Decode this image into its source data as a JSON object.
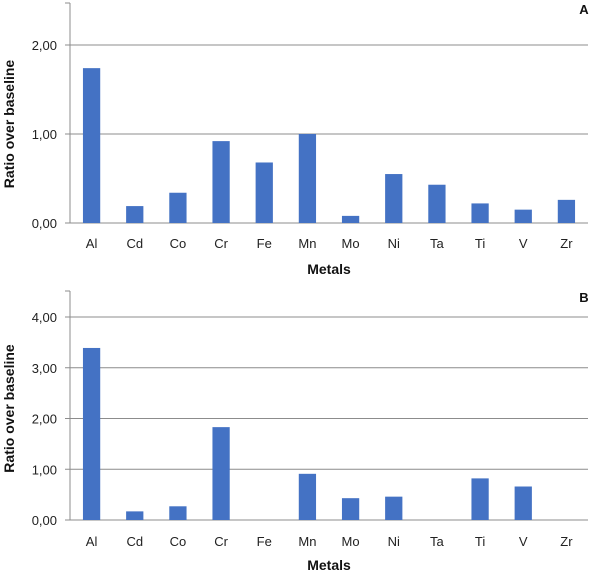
{
  "colors": {
    "bar": "#4472c4",
    "grid": "#8c8c8c",
    "axis": "#8c8c8c",
    "text": "#222222"
  },
  "chart_data": [
    {
      "type": "bar",
      "panel_label": "A",
      "xlabel": "Metals",
      "ylabel": "Ratio over baseline",
      "categories": [
        "Al",
        "Cd",
        "Co",
        "Cr",
        "Fe",
        "Mn",
        "Mo",
        "Ni",
        "Ta",
        "Ti",
        "V",
        "Zr"
      ],
      "values": [
        1.74,
        0.19,
        0.34,
        0.92,
        0.68,
        1.0,
        0.08,
        0.55,
        0.43,
        0.22,
        0.15,
        0.26
      ],
      "ylim": [
        0,
        2.0
      ],
      "yticks": [
        0,
        1,
        2
      ],
      "ytick_labels": [
        "0,00",
        "1,00",
        "2,00"
      ],
      "grid": true,
      "legend": "none"
    },
    {
      "type": "bar",
      "panel_label": "B",
      "xlabel": "Metals",
      "ylabel": "Ratio over baseline",
      "categories": [
        "Al",
        "Cd",
        "Co",
        "Cr",
        "Fe",
        "Mn",
        "Mo",
        "Ni",
        "Ta",
        "Ti",
        "V",
        "Zr"
      ],
      "values": [
        3.39,
        0.17,
        0.27,
        1.83,
        0,
        0.91,
        0.43,
        0.46,
        0,
        0.82,
        0.66,
        0
      ],
      "ylim": [
        0,
        4.0
      ],
      "yticks": [
        0,
        1,
        2,
        3,
        4
      ],
      "ytick_labels": [
        "0,00",
        "1,00",
        "2,00",
        "3,00",
        "4,00"
      ],
      "grid": true,
      "legend": "none"
    }
  ]
}
